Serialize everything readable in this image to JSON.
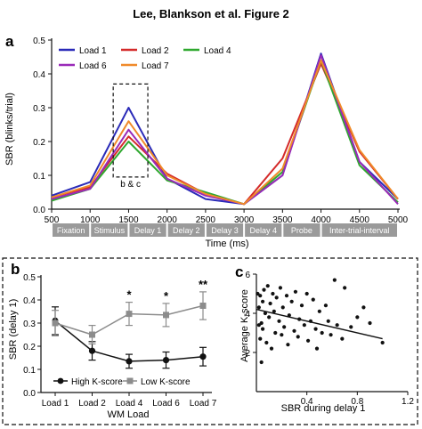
{
  "figure_title": "Lee, Blankson et al. Figure 2",
  "panel_letters": {
    "a": "a",
    "b": "b",
    "c": "c"
  },
  "colors": {
    "line_axes": "#111111",
    "bar": "#9a9a9a",
    "bar_text": "#ffffff",
    "gray_series": "#8c8c8c"
  },
  "chart_data": [
    {
      "panel": "a",
      "type": "line",
      "xlabel": "Time (ms)",
      "ylabel": "SBR (blinks/trial)",
      "xlim": [
        500,
        5000
      ],
      "ylim": [
        0,
        0.5
      ],
      "x_ticks": [
        "500",
        "1000",
        "1500",
        "2000",
        "2500",
        "3000",
        "3500",
        "4000",
        "4500",
        "5000"
      ],
      "y_ticks": [
        "0.0",
        "0.1",
        "0.2",
        "0.3",
        "0.4",
        "0.5"
      ],
      "x": [
        500,
        1000,
        1500,
        2000,
        2500,
        3000,
        3500,
        4000,
        4500,
        5000
      ],
      "series": [
        {
          "name": "Load 1",
          "color": "#2a2ab8",
          "values": [
            0.04,
            0.08,
            0.3,
            0.09,
            0.03,
            0.015,
            0.1,
            0.46,
            0.14,
            0.03
          ]
        },
        {
          "name": "Load 2",
          "color": "#d42a2a",
          "values": [
            0.035,
            0.065,
            0.215,
            0.105,
            0.045,
            0.015,
            0.15,
            0.43,
            0.17,
            0.03
          ]
        },
        {
          "name": "Load 4",
          "color": "#2fa82f",
          "values": [
            0.025,
            0.06,
            0.2,
            0.085,
            0.05,
            0.015,
            0.11,
            0.44,
            0.13,
            0.02
          ]
        },
        {
          "name": "Load 6",
          "color": "#9a2ab8",
          "values": [
            0.03,
            0.06,
            0.235,
            0.09,
            0.04,
            0.015,
            0.1,
            0.455,
            0.14,
            0.015
          ]
        },
        {
          "name": "Load 7",
          "color": "#f08a2a",
          "values": [
            0.035,
            0.07,
            0.26,
            0.1,
            0.045,
            0.015,
            0.12,
            0.44,
            0.175,
            0.03
          ]
        }
      ],
      "annotation": "b & c",
      "epochs": [
        "Fixation",
        "Stimulus",
        "Delay 1",
        "Delay 2",
        "Delay 3",
        "Delay 4",
        "Probe",
        "Inter-trial-interval"
      ],
      "epoch_bounds": [
        [
          500,
          1000
        ],
        [
          1000,
          1500
        ],
        [
          1500,
          2000
        ],
        [
          2000,
          2500
        ],
        [
          2500,
          3000
        ],
        [
          3000,
          3500
        ],
        [
          3500,
          4000
        ],
        [
          4000,
          5000
        ]
      ],
      "legend": "top-left"
    },
    {
      "panel": "b",
      "type": "line",
      "xlabel": "WM Load",
      "ylabel": "SBR (delay 1)",
      "categories": [
        "Load 1",
        "Load 2",
        "Load 4",
        "Load 6",
        "Load 7"
      ],
      "ylim": [
        0,
        0.5
      ],
      "y_ticks": [
        "0.0",
        "0.1",
        "0.2",
        "0.3",
        "0.4",
        "0.5"
      ],
      "series": [
        {
          "name": "High K-score",
          "color": "#111111",
          "marker": "circle",
          "values": [
            0.31,
            0.18,
            0.135,
            0.14,
            0.155
          ],
          "errors": [
            0.06,
            0.04,
            0.03,
            0.035,
            0.04
          ]
        },
        {
          "name": "Low K-score",
          "color": "#8c8c8c",
          "marker": "square",
          "values": [
            0.3,
            0.25,
            0.34,
            0.335,
            0.375
          ],
          "errors": [
            0.055,
            0.04,
            0.05,
            0.05,
            0.06
          ]
        }
      ],
      "significance": [
        "",
        "",
        "*",
        "*",
        "**"
      ],
      "legend": "bottom"
    },
    {
      "panel": "c",
      "type": "scatter",
      "xlabel": "SBR during delay 1",
      "ylabel": "Average K-score",
      "xlim": [
        0,
        1.2
      ],
      "ylim": [
        0,
        6
      ],
      "x_ticks": [
        "0.4",
        "0.8",
        "1.2"
      ],
      "y_ticks": [
        "2",
        "4",
        "6"
      ],
      "fit_line": {
        "x": [
          0,
          1.0
        ],
        "y": [
          4.2,
          2.7
        ]
      },
      "points": [
        [
          0.01,
          5.0
        ],
        [
          0.02,
          4.3
        ],
        [
          0.02,
          3.4
        ],
        [
          0.03,
          4.9
        ],
        [
          0.03,
          2.7
        ],
        [
          0.04,
          3.5
        ],
        [
          0.04,
          1.5
        ],
        [
          0.05,
          4.6
        ],
        [
          0.05,
          3.2
        ],
        [
          0.06,
          5.2
        ],
        [
          0.07,
          4.0
        ],
        [
          0.08,
          2.5
        ],
        [
          0.09,
          5.4
        ],
        [
          0.1,
          3.8
        ],
        [
          0.11,
          4.5
        ],
        [
          0.12,
          2.2
        ],
        [
          0.13,
          5.0
        ],
        [
          0.14,
          4.1
        ],
        [
          0.15,
          3.0
        ],
        [
          0.16,
          4.8
        ],
        [
          0.18,
          3.6
        ],
        [
          0.19,
          5.3
        ],
        [
          0.2,
          2.9
        ],
        [
          0.21,
          4.3
        ],
        [
          0.22,
          3.3
        ],
        [
          0.24,
          4.9
        ],
        [
          0.25,
          2.4
        ],
        [
          0.26,
          3.9
        ],
        [
          0.28,
          4.6
        ],
        [
          0.3,
          3.1
        ],
        [
          0.31,
          5.1
        ],
        [
          0.33,
          2.8
        ],
        [
          0.34,
          3.7
        ],
        [
          0.36,
          4.4
        ],
        [
          0.38,
          3.4
        ],
        [
          0.4,
          5.0
        ],
        [
          0.41,
          2.6
        ],
        [
          0.43,
          3.6
        ],
        [
          0.45,
          4.7
        ],
        [
          0.47,
          3.2
        ],
        [
          0.48,
          2.2
        ],
        [
          0.5,
          4.1
        ],
        [
          0.52,
          3.0
        ],
        [
          0.55,
          4.4
        ],
        [
          0.57,
          3.6
        ],
        [
          0.59,
          2.9
        ],
        [
          0.62,
          5.7
        ],
        [
          0.64,
          3.4
        ],
        [
          0.68,
          2.7
        ],
        [
          0.7,
          5.3
        ],
        [
          0.75,
          3.3
        ],
        [
          0.8,
          3.8
        ],
        [
          0.85,
          4.3
        ],
        [
          0.9,
          3.5
        ],
        [
          1.0,
          2.5
        ]
      ],
      "grid": false
    }
  ]
}
